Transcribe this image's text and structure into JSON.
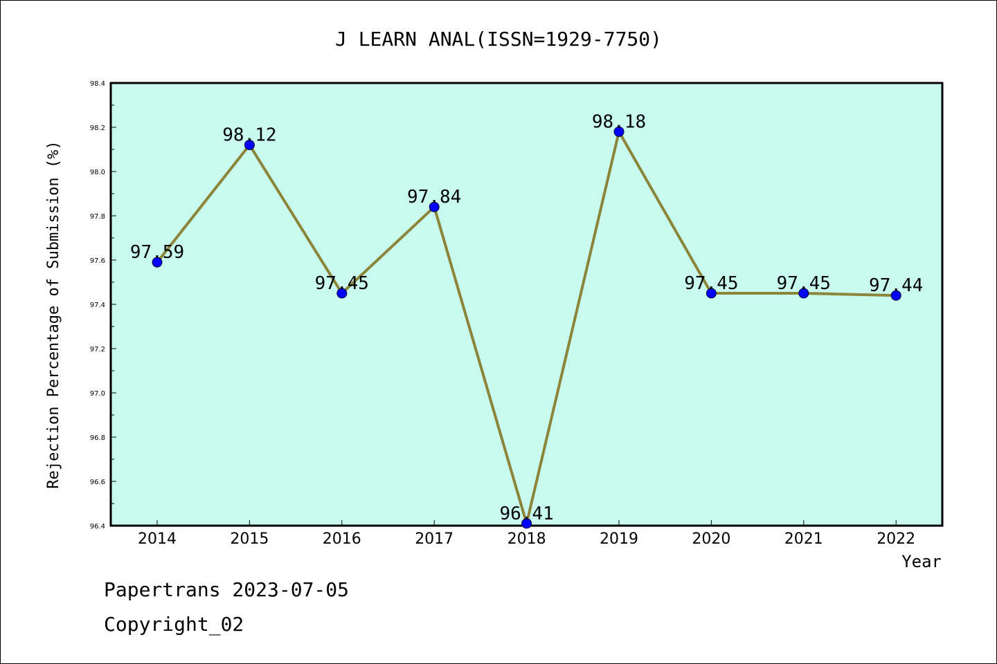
{
  "chart_data": {
    "type": "line",
    "title": "J LEARN ANAL(ISSN=1929-7750)",
    "xlabel": "Year",
    "ylabel": "Rejection Percentage of Submission (%)",
    "categories": [
      "2014",
      "2015",
      "2016",
      "2017",
      "2018",
      "2019",
      "2020",
      "2021",
      "2022"
    ],
    "values": [
      97.59,
      98.12,
      97.45,
      97.84,
      96.41,
      98.18,
      97.45,
      97.45,
      97.44
    ],
    "data_labels": [
      "97.59",
      "98.12",
      "97.45",
      "97.84",
      "96.41",
      "98.18",
      "97.45",
      "97.45",
      "97.44"
    ],
    "ylim": [
      96.4,
      98.4
    ],
    "yticks": [
      "96.4",
      "96.6",
      "96.8",
      "97.0",
      "97.2",
      "97.4",
      "97.6",
      "97.8",
      "98.0",
      "98.2",
      "98.4"
    ],
    "grid": false,
    "legend": "none",
    "colors": {
      "plot_background": "#c8fbee",
      "line": "#8b8439",
      "marker": "#0000ff"
    }
  },
  "footer": {
    "line1": "Papertrans 2023-07-05",
    "line2": "Copyright_02"
  }
}
